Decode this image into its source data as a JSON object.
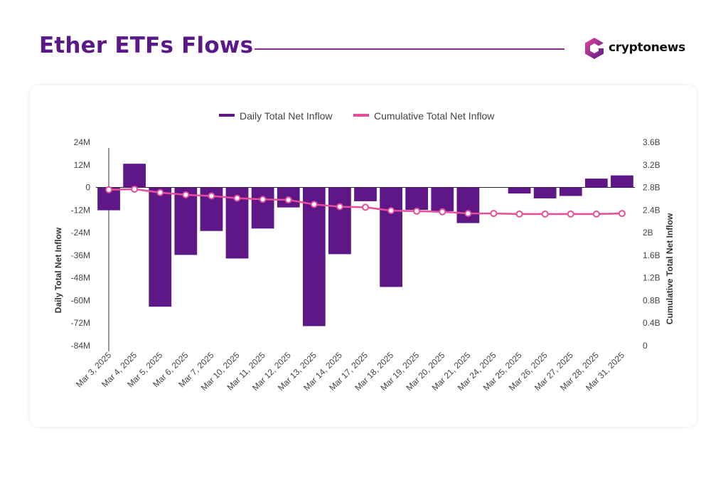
{
  "header": {
    "title": "Ether ETFs Flows",
    "brand": "cryptonews"
  },
  "colors": {
    "title": "#5b1889",
    "bar": "#5f1787",
    "line": "#e64e99",
    "rule": "#8b2a8e"
  },
  "icons": {
    "brand_logo": "cryptonews-hexagon-logo-icon"
  },
  "chart_data": {
    "type": "bar",
    "title": "",
    "legend_position": "top",
    "legend": [
      "Daily Total Net Inflow",
      "Cumulative Total Net Inflow"
    ],
    "categories": [
      "Mar 3, 2025",
      "Mar 4, 2025",
      "Mar 5, 2025",
      "Mar 6, 2025",
      "Mar 7, 2025",
      "Mar 10, 2025",
      "Mar 11, 2025",
      "Mar 12, 2025",
      "Mar 13, 2025",
      "Mar 14, 2025",
      "Mar 17, 2025",
      "Mar 18, 2025",
      "Mar 19, 2025",
      "Mar 20, 2025",
      "Mar 21, 2025",
      "Mar 24, 2025",
      "Mar 25, 2025",
      "Mar 26, 2025",
      "Mar 27, 2025",
      "Mar 28, 2025",
      "Mar 31, 2025"
    ],
    "series": [
      {
        "name": "Daily Total Net Inflow",
        "kind": "bar",
        "axis": "left",
        "unit": "M",
        "values": [
          -12.1,
          12.6,
          -63.3,
          -35.8,
          -23.1,
          -37.7,
          -21.8,
          -10.6,
          -73.6,
          -35.4,
          -7.3,
          -52.8,
          -11.9,
          -12.6,
          -18.9,
          0,
          -3.2,
          -5.8,
          -4.5,
          4.7,
          6.4
        ]
      },
      {
        "name": "Cumulative Total Net Inflow",
        "kind": "line",
        "axis": "right",
        "unit": "B",
        "values": [
          2.76,
          2.77,
          2.71,
          2.67,
          2.65,
          2.61,
          2.59,
          2.58,
          2.5,
          2.46,
          2.45,
          2.39,
          2.38,
          2.37,
          2.34,
          2.34,
          2.33,
          2.33,
          2.33,
          2.33,
          2.34
        ]
      }
    ],
    "y_left": {
      "label": "Daily Total Net Inflow",
      "ticks": [
        "24M",
        "12M",
        "0",
        "-12M",
        "-24M",
        "-36M",
        "-48M",
        "-60M",
        "-72M",
        "-84M"
      ],
      "ylim": [
        -84,
        24
      ]
    },
    "y_right": {
      "label": "Cumulative Total Net Inflow",
      "ticks": [
        "3.6B",
        "3.2B",
        "2.8B",
        "2.4B",
        "2B",
        "1.6B",
        "1.2B",
        "0.8B",
        "0.4B",
        "0"
      ],
      "ylim": [
        0,
        3.6
      ]
    },
    "grid": false
  }
}
